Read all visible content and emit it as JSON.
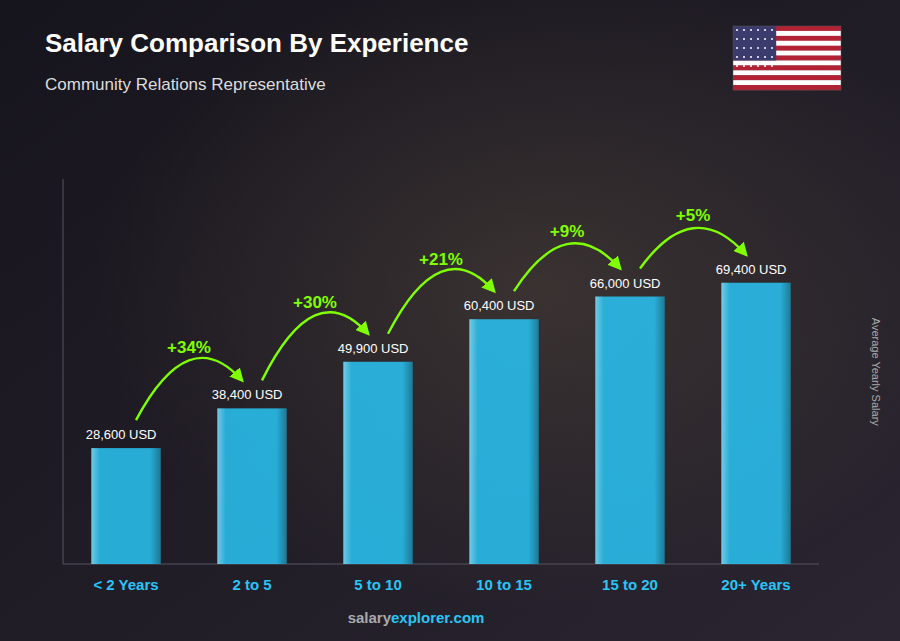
{
  "chart_data": {
    "type": "bar",
    "title": "Salary Comparison By Experience",
    "subtitle": "Community Relations Representative",
    "ylabel": "Average Yearly Salary",
    "categories": [
      "< 2 Years",
      "2 to 5",
      "5 to 10",
      "10 to 15",
      "15 to 20",
      "20+ Years"
    ],
    "values": [
      28600,
      38400,
      49900,
      60400,
      66000,
      69400
    ],
    "value_labels": [
      "28,600 USD",
      "38,400 USD",
      "49,900 USD",
      "60,400 USD",
      "66,000 USD",
      "69,400 USD"
    ],
    "data_labels": true,
    "annotations": [
      "+34%",
      "+30%",
      "+21%",
      "+9%",
      "+5%"
    ],
    "watermark": [
      "salary",
      "explorer.com"
    ],
    "color": "#29c5f6",
    "ylim": [
      0,
      95000
    ],
    "grid": false,
    "tick_labels": "x"
  }
}
